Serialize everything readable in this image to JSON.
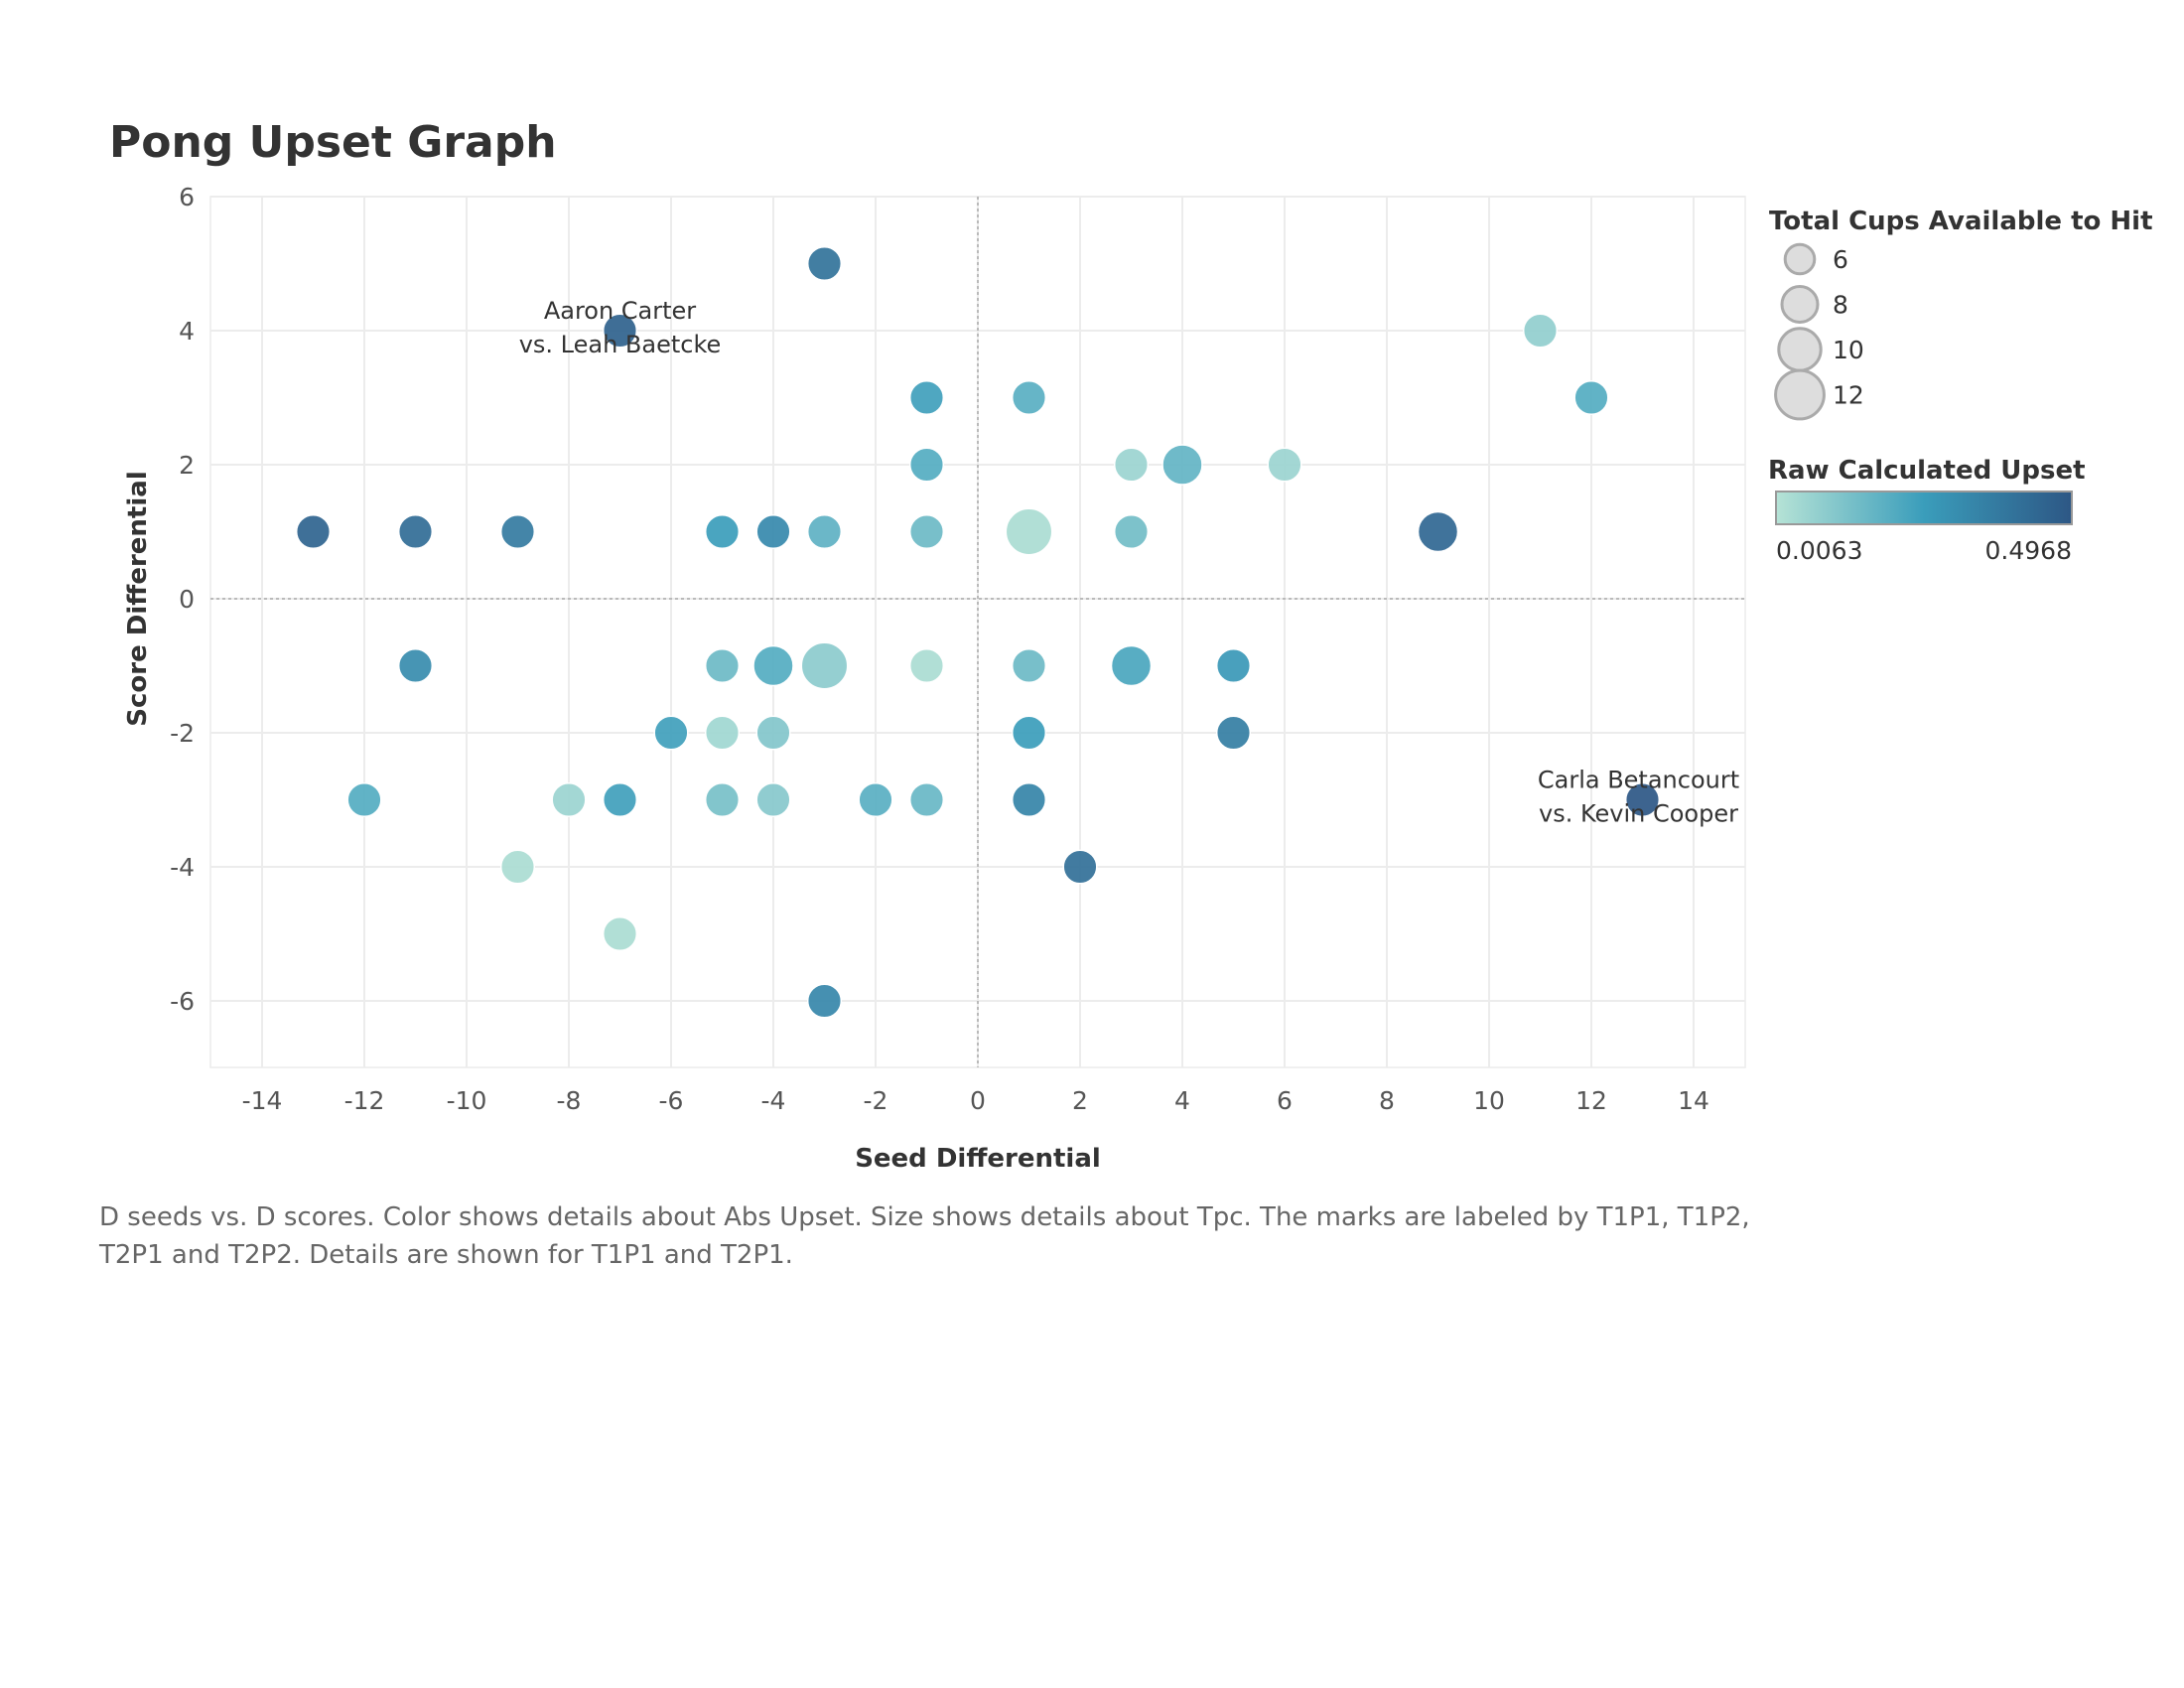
{
  "title": "Pong Upset Graph",
  "caption": "D seeds vs. D scores.  Color shows details about Abs Upset.  Size shows details about Tpc.  The marks are labeled by T1P1, T1P2, T2P1 and T2P2.  Details are shown for T1P1 and T2P1.",
  "colors": {
    "low": "#b6e3d6",
    "mid": "#3a9dbb",
    "high": "#2d5785",
    "grid": "#ececec",
    "zero_line": "#aaaaaa"
  },
  "chart_data": {
    "type": "scatter",
    "xlabel": "Seed Differential",
    "ylabel": "Score Differential",
    "xlim": [
      -15,
      15
    ],
    "ylim": [
      -7,
      6.6
    ],
    "x_ticks": [
      -14,
      -12,
      -10,
      -8,
      -6,
      -4,
      -2,
      0,
      2,
      4,
      6,
      8,
      10,
      12,
      14
    ],
    "y_ticks": [
      -6,
      -4,
      -2,
      0,
      2,
      4,
      6
    ],
    "x_tick_labels": [
      "-14",
      "-12",
      "-10",
      "-8",
      "-6",
      "-4",
      "-2",
      "0",
      "2",
      "4",
      "6",
      "8",
      "10",
      "12",
      "14"
    ],
    "y_tick_labels": [
      "-6",
      "-4",
      "-2",
      "0",
      "2",
      "4",
      "6"
    ],
    "grid": true,
    "reference_lines": [
      {
        "axis": "x",
        "value": 0
      },
      {
        "axis": "y",
        "value": 0
      }
    ],
    "size_legend": {
      "title": "Total Cups Available to Hit",
      "values": [
        6,
        8,
        10,
        12
      ],
      "labels": [
        "6",
        "8",
        "10",
        "12"
      ]
    },
    "color_legend": {
      "title": "Raw Calculated Upset",
      "min": 0.0063,
      "max": 0.4968,
      "min_label": "0.0063",
      "max_label": "0.4968"
    },
    "points": [
      {
        "x": -3,
        "y": 5,
        "size": 6,
        "upset": 0.4
      },
      {
        "x": -7,
        "y": 4,
        "size": 6,
        "upset": 0.46,
        "label": [
          "Aaron Carter",
          "vs. Leah Baetcke"
        ]
      },
      {
        "x": 11,
        "y": 4,
        "size": 6,
        "upset": 0.08
      },
      {
        "x": -1,
        "y": 3,
        "size": 6,
        "upset": 0.24
      },
      {
        "x": 1,
        "y": 3,
        "size": 6,
        "upset": 0.19
      },
      {
        "x": 12,
        "y": 3,
        "size": 6,
        "upset": 0.2
      },
      {
        "x": -1,
        "y": 2,
        "size": 6,
        "upset": 0.2
      },
      {
        "x": 3,
        "y": 2,
        "size": 6,
        "upset": 0.06
      },
      {
        "x": 4,
        "y": 2,
        "size": 8,
        "upset": 0.17
      },
      {
        "x": 6,
        "y": 2,
        "size": 6,
        "upset": 0.06
      },
      {
        "x": -13,
        "y": 1,
        "size": 6,
        "upset": 0.45
      },
      {
        "x": -11,
        "y": 1,
        "size": 6,
        "upset": 0.42
      },
      {
        "x": -9,
        "y": 1,
        "size": 6,
        "upset": 0.37
      },
      {
        "x": -5,
        "y": 1,
        "size": 6,
        "upset": 0.25
      },
      {
        "x": -4,
        "y": 1,
        "size": 6,
        "upset": 0.32
      },
      {
        "x": -3,
        "y": 1,
        "size": 6,
        "upset": 0.18
      },
      {
        "x": -1,
        "y": 1,
        "size": 6,
        "upset": 0.15
      },
      {
        "x": 1,
        "y": 1,
        "size": 10,
        "upset": 0.03
      },
      {
        "x": 3,
        "y": 1,
        "size": 6,
        "upset": 0.14
      },
      {
        "x": 9,
        "y": 1,
        "size": 8,
        "upset": 0.44
      },
      {
        "x": -11,
        "y": -1,
        "size": 6,
        "upset": 0.31
      },
      {
        "x": -5,
        "y": -1,
        "size": 6,
        "upset": 0.15
      },
      {
        "x": -4,
        "y": -1,
        "size": 8,
        "upset": 0.2
      },
      {
        "x": -3,
        "y": -1,
        "size": 10,
        "upset": 0.09
      },
      {
        "x": -1,
        "y": -1,
        "size": 6,
        "upset": 0.03
      },
      {
        "x": 1,
        "y": -1,
        "size": 6,
        "upset": 0.15
      },
      {
        "x": 3,
        "y": -1,
        "size": 8,
        "upset": 0.22
      },
      {
        "x": 5,
        "y": -1,
        "size": 6,
        "upset": 0.27
      },
      {
        "x": -6,
        "y": -2,
        "size": 6,
        "upset": 0.24
      },
      {
        "x": -5,
        "y": -2,
        "size": 6,
        "upset": 0.05
      },
      {
        "x": -4,
        "y": -2,
        "size": 6,
        "upset": 0.11
      },
      {
        "x": 1,
        "y": -2,
        "size": 6,
        "upset": 0.25
      },
      {
        "x": 5,
        "y": -2,
        "size": 6,
        "upset": 0.36
      },
      {
        "x": -12,
        "y": -3,
        "size": 6,
        "upset": 0.2
      },
      {
        "x": -8,
        "y": -3,
        "size": 6,
        "upset": 0.06
      },
      {
        "x": -7,
        "y": -3,
        "size": 6,
        "upset": 0.24
      },
      {
        "x": -5,
        "y": -3,
        "size": 6,
        "upset": 0.13
      },
      {
        "x": -4,
        "y": -3,
        "size": 6,
        "upset": 0.1
      },
      {
        "x": -2,
        "y": -3,
        "size": 6,
        "upset": 0.19
      },
      {
        "x": -1,
        "y": -3,
        "size": 6,
        "upset": 0.16
      },
      {
        "x": 1,
        "y": -3,
        "size": 6,
        "upset": 0.34
      },
      {
        "x": 13,
        "y": -3,
        "size": 6,
        "upset": 0.4968,
        "label": [
          "Carla Betancourt",
          "vs. Kevin Cooper"
        ]
      },
      {
        "x": -9,
        "y": -4,
        "size": 6,
        "upset": 0.03
      },
      {
        "x": 2,
        "y": -4,
        "size": 6,
        "upset": 0.41
      },
      {
        "x": -7,
        "y": -5,
        "size": 6,
        "upset": 0.03
      },
      {
        "x": -3,
        "y": -6,
        "size": 6,
        "upset": 0.33
      }
    ]
  }
}
